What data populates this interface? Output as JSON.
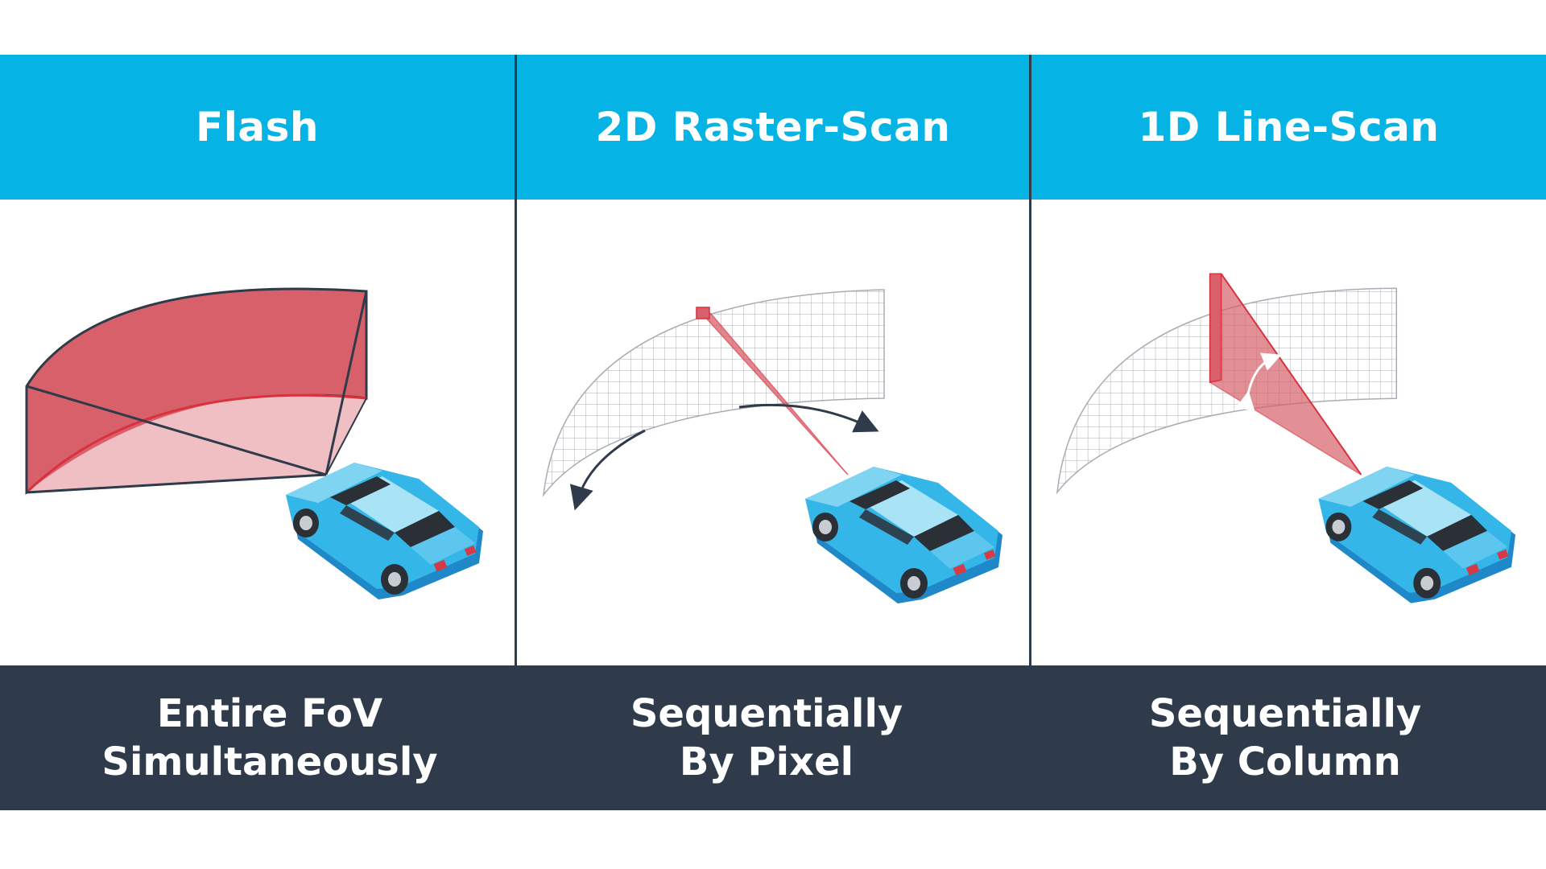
{
  "colors": {
    "header_bg": "#05b3e4",
    "footer_bg": "#2f3b4a",
    "beam_red": "#d8606a",
    "beam_pink": "#f0bfc4",
    "car_body": "#35b6e8",
    "divider": "#2f3b4a"
  },
  "panels": [
    {
      "title": "Flash",
      "caption_line1": "Entire FoV",
      "caption_line2": "Simultaneously",
      "illustration": "flash-beam-volume"
    },
    {
      "title": "2D Raster-Scan",
      "caption_line1": "Sequentially",
      "caption_line2": "By Pixel",
      "illustration": "pixel-beam-grid"
    },
    {
      "title": "1D Line-Scan",
      "caption_line1": "Sequentially",
      "caption_line2": "By Column",
      "illustration": "column-beam-grid"
    }
  ],
  "icons": [
    "car-icon",
    "curved-arrow-icon",
    "double-arrow-icon",
    "grid-icon"
  ]
}
